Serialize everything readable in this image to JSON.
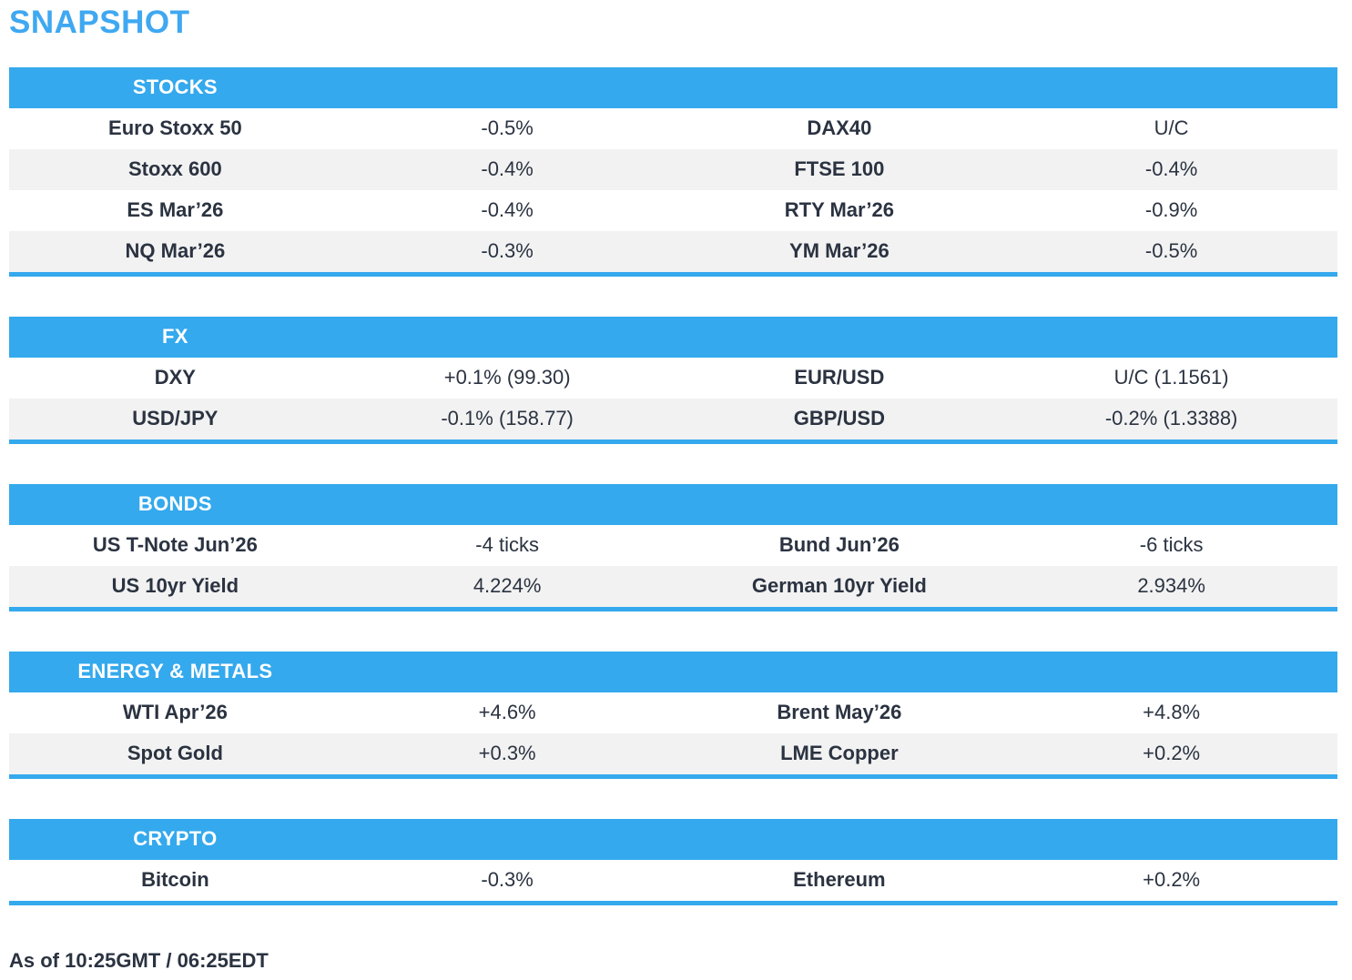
{
  "page": {
    "title": "SNAPSHOT",
    "footer": "As of 10:25GMT / 06:25EDT"
  },
  "colors": {
    "accent": "#34a9ed",
    "title": "#3fa8f1",
    "row_alt": "#f2f2f2",
    "text": "#2b3341",
    "header_text": "#ffffff"
  },
  "sections": [
    {
      "header": "STOCKS",
      "rows": [
        {
          "l_label": "Euro Stoxx 50",
          "l_value": "-0.5%",
          "r_label": "DAX40",
          "r_value": "U/C"
        },
        {
          "l_label": "Stoxx 600",
          "l_value": "-0.4%",
          "r_label": "FTSE 100",
          "r_value": "-0.4%"
        },
        {
          "l_label": "ES Mar’26",
          "l_value": "-0.4%",
          "r_label": "RTY Mar’26",
          "r_value": "-0.9%"
        },
        {
          "l_label": "NQ Mar’26",
          "l_value": "-0.3%",
          "r_label": "YM Mar’26",
          "r_value": "-0.5%"
        }
      ]
    },
    {
      "header": "FX",
      "rows": [
        {
          "l_label": "DXY",
          "l_value": "+0.1% (99.30)",
          "r_label": "EUR/USD",
          "r_value": "U/C (1.1561)"
        },
        {
          "l_label": "USD/JPY",
          "l_value": "-0.1% (158.77)",
          "r_label": "GBP/USD",
          "r_value": "-0.2% (1.3388)"
        }
      ]
    },
    {
      "header": "BONDS",
      "rows": [
        {
          "l_label": "US T-Note Jun’26",
          "l_value": "-4 ticks",
          "r_label": "Bund Jun’26",
          "r_value": "-6 ticks"
        },
        {
          "l_label": "US 10yr Yield",
          "l_value": "4.224%",
          "r_label": "German 10yr Yield",
          "r_value": "2.934%"
        }
      ]
    },
    {
      "header": "ENERGY & METALS",
      "rows": [
        {
          "l_label": "WTI Apr’26",
          "l_value": "+4.6%",
          "r_label": "Brent May’26",
          "r_value": "+4.8%"
        },
        {
          "l_label": "Spot Gold",
          "l_value": "+0.3%",
          "r_label": "LME Copper",
          "r_value": "+0.2%"
        }
      ]
    },
    {
      "header": "CRYPTO",
      "rows": [
        {
          "l_label": "Bitcoin",
          "l_value": "-0.3%",
          "r_label": "Ethereum",
          "r_value": "+0.2%"
        }
      ]
    }
  ]
}
